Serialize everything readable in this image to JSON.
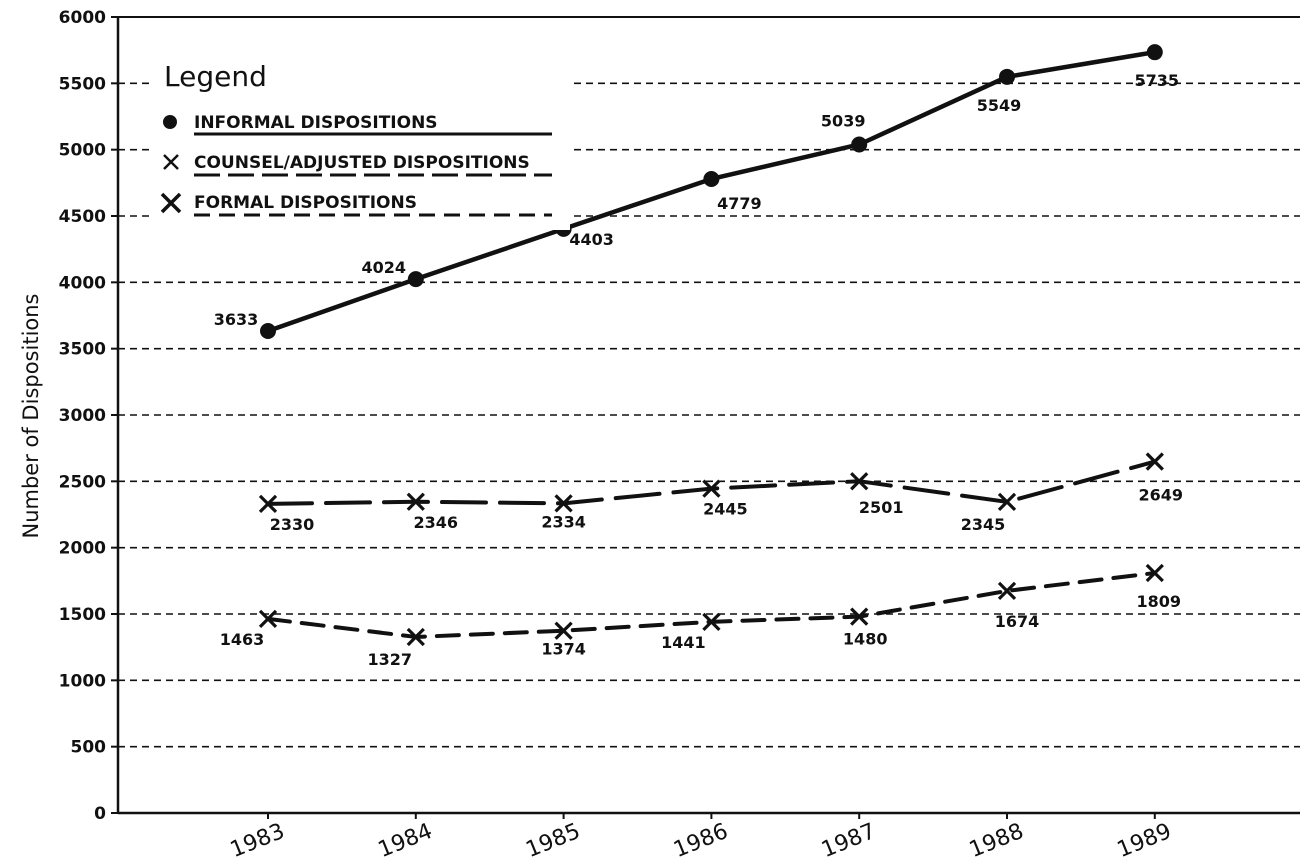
{
  "chart_data": {
    "type": "line",
    "ylabel": "Number of Dispositions",
    "xlabel": "",
    "title": "",
    "categories": [
      "1983",
      "1984",
      "1985",
      "1986",
      "1987",
      "1988",
      "1989"
    ],
    "ylim": [
      0,
      6000
    ],
    "yticks": [
      0,
      500,
      1000,
      1500,
      2000,
      2500,
      3000,
      3500,
      4000,
      4500,
      5000,
      5500,
      6000
    ],
    "yticks_labels": [
      "0",
      "500",
      "1000",
      "1500",
      "2000",
      "2500",
      "3000",
      "3500",
      "4000",
      "4500",
      "5000",
      "5500",
      "6000"
    ],
    "grid": true,
    "legend": {
      "title": "Legend",
      "position": "top-left",
      "entries": [
        "INFORMAL DISPOSITIONS",
        "COUNSEL/ADJUSTED DISPOSITIONS",
        "FORMAL DISPOSITIONS"
      ]
    },
    "series": [
      {
        "name": "INFORMAL DISPOSITIONS",
        "values": [
          3633,
          4024,
          4403,
          4779,
          5039,
          5549,
          5735
        ],
        "labels": [
          "3633",
          "4024",
          "4403",
          "4779",
          "5039",
          "5549",
          "5735"
        ],
        "marker": "circle",
        "line": "solid"
      },
      {
        "name": "COUNSEL/ADJUSTED DISPOSITIONS",
        "values": [
          2330,
          2346,
          2334,
          2445,
          2501,
          2345,
          2649
        ],
        "labels": [
          "2330",
          "2346",
          "2334",
          "2445",
          "2501",
          "2345",
          "2649"
        ],
        "marker": "x",
        "line": "long-dash"
      },
      {
        "name": "FORMAL DISPOSITIONS",
        "values": [
          1463,
          1327,
          1374,
          1441,
          1480,
          1674,
          1809
        ],
        "labels": [
          "1463",
          "1327",
          "1374",
          "1441",
          "1480",
          "1674",
          "1809"
        ],
        "marker": "x",
        "line": "short-dash"
      }
    ]
  }
}
